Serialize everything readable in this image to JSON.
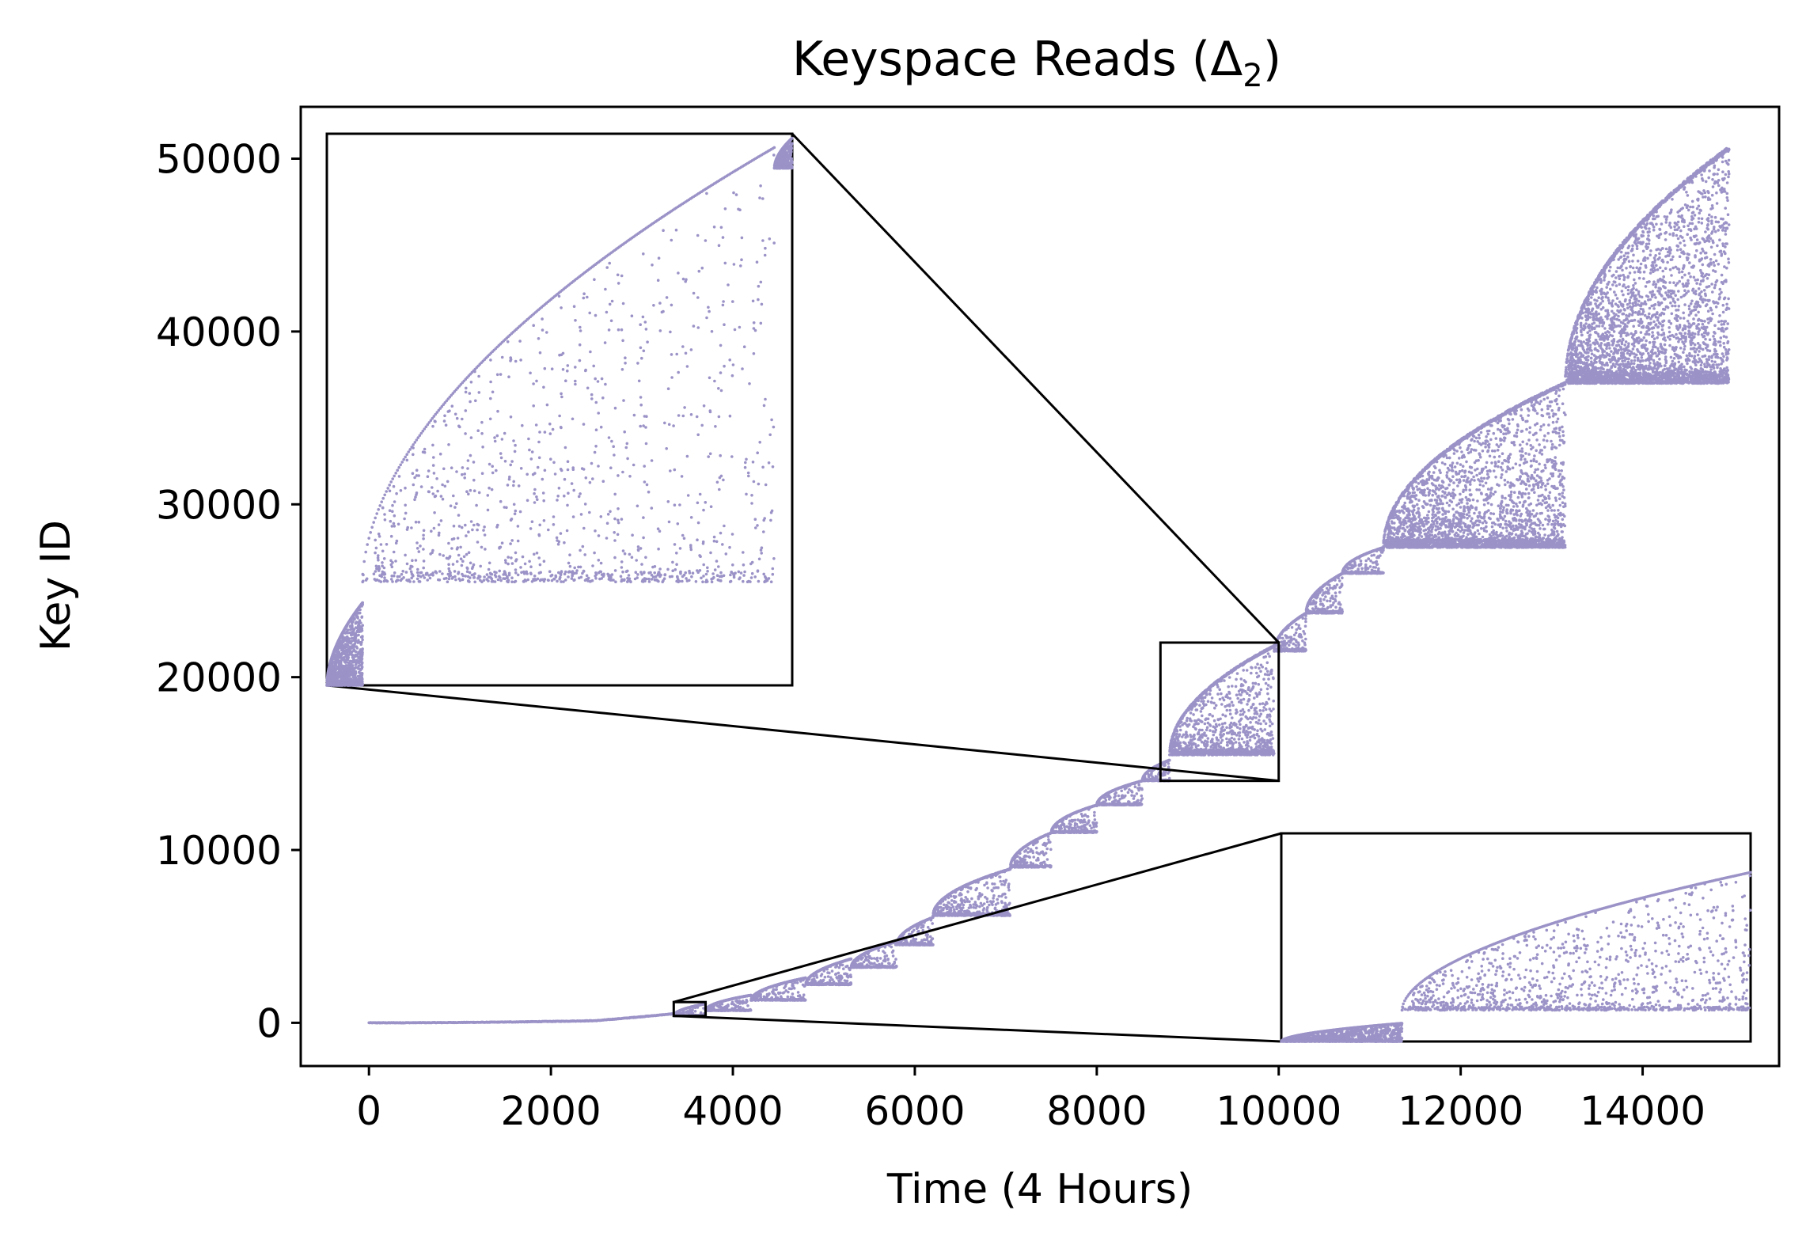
{
  "chart_data": {
    "type": "scatter",
    "title": "Keyspace Reads (Δ",
    "title_subscript": "2",
    "title_suffix": ")",
    "xlabel": "Time (4 Hours)",
    "ylabel": "Key ID",
    "xlim": [
      -750,
      15500
    ],
    "ylim": [
      -2500,
      53000
    ],
    "xticks": [
      0,
      2000,
      4000,
      6000,
      8000,
      10000,
      12000,
      14000
    ],
    "xtick_labels": [
      "0",
      "2000",
      "4000",
      "6000",
      "8000",
      "10000",
      "12000",
      "14000"
    ],
    "yticks": [
      0,
      10000,
      20000,
      30000,
      40000,
      50000
    ],
    "ytick_labels": [
      "0",
      "10000",
      "20000",
      "30000",
      "40000",
      "50000"
    ],
    "grid": false,
    "legend": "none",
    "point_color": "#9b93c7",
    "series": [
      {
        "x": [
          0,
          500,
          1000,
          1500,
          2000,
          2500,
          3000,
          3500,
          4000,
          4500,
          5000,
          5500,
          6000,
          6500,
          7000,
          7500,
          8000,
          8500,
          9000,
          9500,
          10000,
          10500,
          11000,
          11500,
          12000,
          12500,
          13000,
          13500,
          14000,
          14500,
          15000
        ],
        "y": [
          0,
          40,
          100,
          180,
          250,
          400,
          550,
          800,
          1500,
          2400,
          3500,
          5000,
          6100,
          7700,
          9000,
          11100,
          12700,
          14500,
          16700,
          19900,
          22000,
          25000,
          27500,
          31000,
          34000,
          35800,
          37000,
          42000,
          45500,
          48000,
          50600
        ],
        "description": "trend of upper envelope"
      }
    ],
    "staircase_segments": [
      {
        "x0": 3350,
        "x1": 3700,
        "base": 400,
        "top": 1100
      },
      {
        "x0": 3700,
        "x1": 4200,
        "base": 700,
        "top": 1600
      },
      {
        "x0": 4200,
        "x1": 4800,
        "base": 1300,
        "top": 2600
      },
      {
        "x0": 4800,
        "x1": 5300,
        "base": 2200,
        "top": 3700
      },
      {
        "x0": 5300,
        "x1": 5800,
        "base": 3200,
        "top": 4700
      },
      {
        "x0": 5800,
        "x1": 6200,
        "base": 4500,
        "top": 6100
      },
      {
        "x0": 6200,
        "x1": 7050,
        "base": 6200,
        "top": 8900
      },
      {
        "x0": 7050,
        "x1": 7500,
        "base": 9000,
        "top": 11000
      },
      {
        "x0": 7500,
        "x1": 8000,
        "base": 11000,
        "top": 12600
      },
      {
        "x0": 8000,
        "x1": 8500,
        "base": 12600,
        "top": 14000
      },
      {
        "x0": 8500,
        "x1": 8800,
        "base": 14000,
        "top": 15200
      },
      {
        "x0": 8800,
        "x1": 9950,
        "base": 15500,
        "top": 21800
      },
      {
        "x0": 9950,
        "x1": 10300,
        "base": 21500,
        "top": 23700
      },
      {
        "x0": 10300,
        "x1": 10700,
        "base": 23700,
        "top": 26000
      },
      {
        "x0": 10700,
        "x1": 11150,
        "base": 26000,
        "top": 27500
      },
      {
        "x0": 11150,
        "x1": 13150,
        "base": 27500,
        "top": 37000
      },
      {
        "x0": 13150,
        "x1": 14950,
        "base": 37000,
        "top": 50600
      }
    ],
    "zoom_boxes": [
      {
        "name": "zoom-upper",
        "region": {
          "x": [
            8700,
            10000
          ],
          "y": [
            14000,
            22000
          ]
        }
      },
      {
        "name": "zoom-lower",
        "region": {
          "x": [
            3350,
            3700
          ],
          "y": [
            400,
            1200
          ]
        }
      }
    ]
  }
}
